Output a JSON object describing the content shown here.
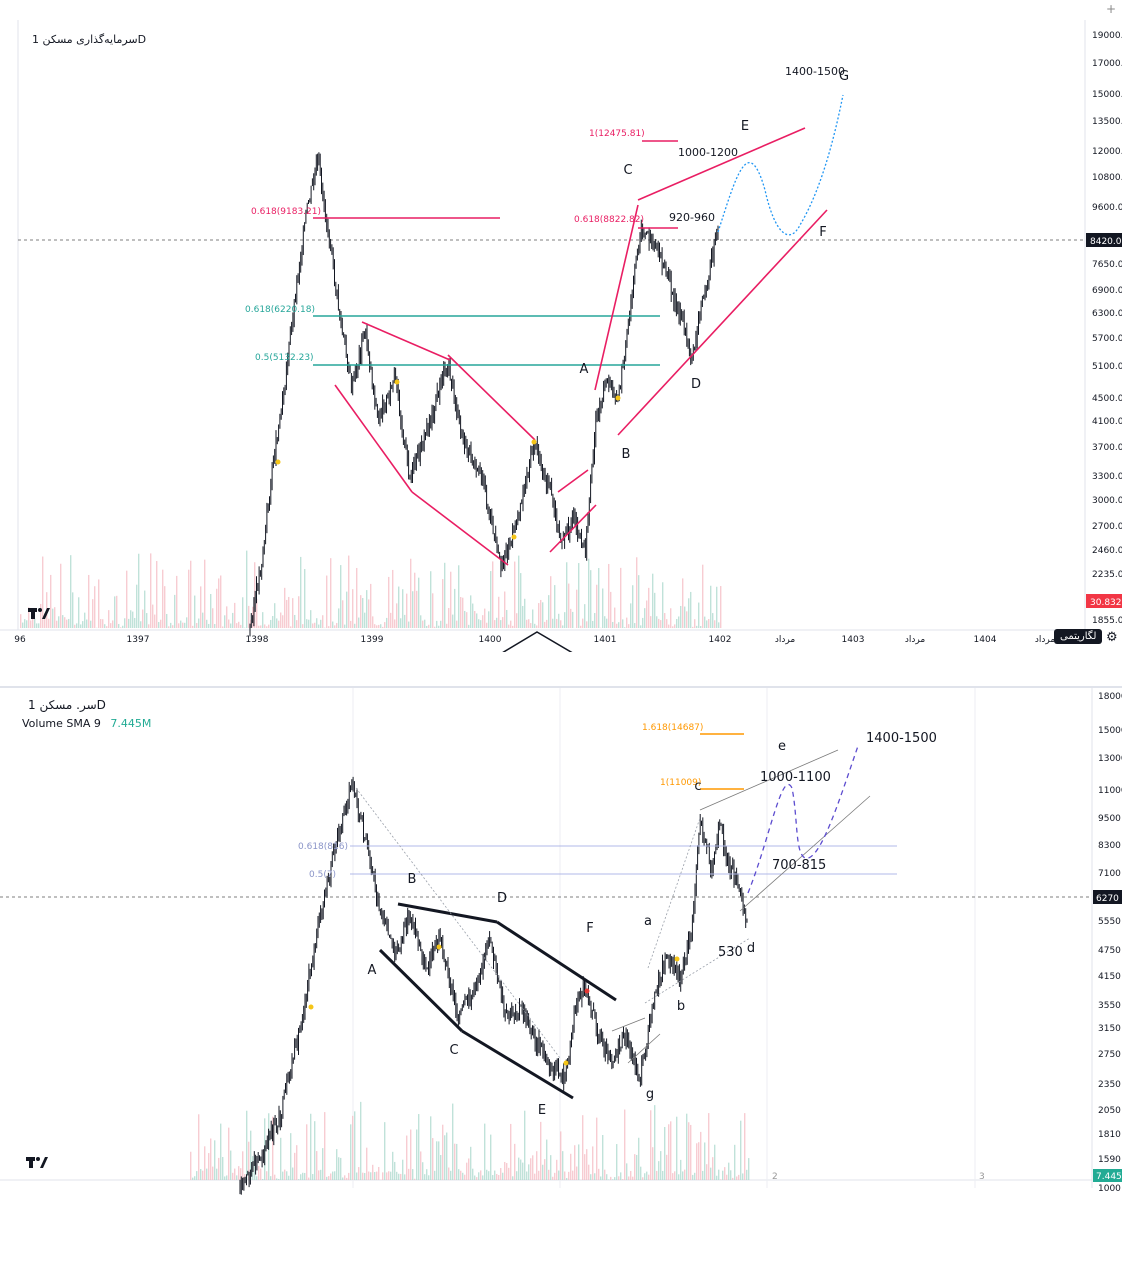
{
  "top_chart": {
    "title": "سرمایه‌گذاری مسکن",
    "timeframe": "1D",
    "last_price": "8420.00",
    "volume_tag": "30.832M",
    "log_button": "لگاریتمی",
    "price_axis": [
      "19000.00",
      "17000.00",
      "15000.00",
      "13500.00",
      "12000.00",
      "10800.00",
      "9600.00",
      "8420.00",
      "7650.00",
      "6900.00",
      "6300.00",
      "5700.00",
      "5100.00",
      "4500.00",
      "4100.00",
      "3700.00",
      "3300.00",
      "3000.00",
      "2700.00",
      "2460.00",
      "2235.00",
      "1855.00"
    ],
    "time_axis": [
      "96",
      "1397",
      "1398",
      "1399",
      "1400",
      "1401",
      "1402",
      "مرداد",
      "1403",
      "مرداد",
      "1404",
      "مرداد"
    ],
    "fib_labels": [
      "0.618(9183.21)",
      "0.618(6220.18)",
      "0.5(5132.23)",
      "0.618(8822.82)",
      "1(12475.81)"
    ],
    "wave_labels": [
      "A",
      "B",
      "C",
      "D",
      "E",
      "F",
      "G"
    ],
    "target_labels": [
      "1400-1500",
      "1000-1200",
      "920-960"
    ]
  },
  "bottom_chart": {
    "title": "سر. مسکن",
    "timeframe": "1D",
    "volume_legend_label": "Volume SMA 9",
    "volume_legend_value": "7.445M",
    "last_price": "6270",
    "volume_tag": "7.445M",
    "price_axis": [
      "18000",
      "15000",
      "13000",
      "11000",
      "9500",
      "8300",
      "7100",
      "6270",
      "5550",
      "4750",
      "4150",
      "3550",
      "3150",
      "2750",
      "2350",
      "2050",
      "1810",
      "1590",
      "1000"
    ],
    "fib_labels": [
      "1.618(14687)",
      "1(11009)",
      "0.618(816)",
      "0.5(7)"
    ],
    "wave_labels": [
      "A",
      "B",
      "C",
      "D",
      "E",
      "F",
      "g",
      "a",
      "b",
      "c",
      "d",
      "e"
    ],
    "target_labels": [
      "1400-1500",
      "1000-1100",
      "700-815",
      "530"
    ],
    "pane_numbers": [
      "2",
      "3"
    ]
  },
  "colors": {
    "candles": "#131722",
    "pink": "#e91e63",
    "teal": "#26a69a",
    "orange": "#ff9800",
    "blue_dotted": "#2196f3",
    "purple_dashed": "#5c4ccf",
    "fib_blue": "#b0b8e8",
    "volume_green": "#a5d6c9",
    "volume_red": "#f4b6bf"
  }
}
